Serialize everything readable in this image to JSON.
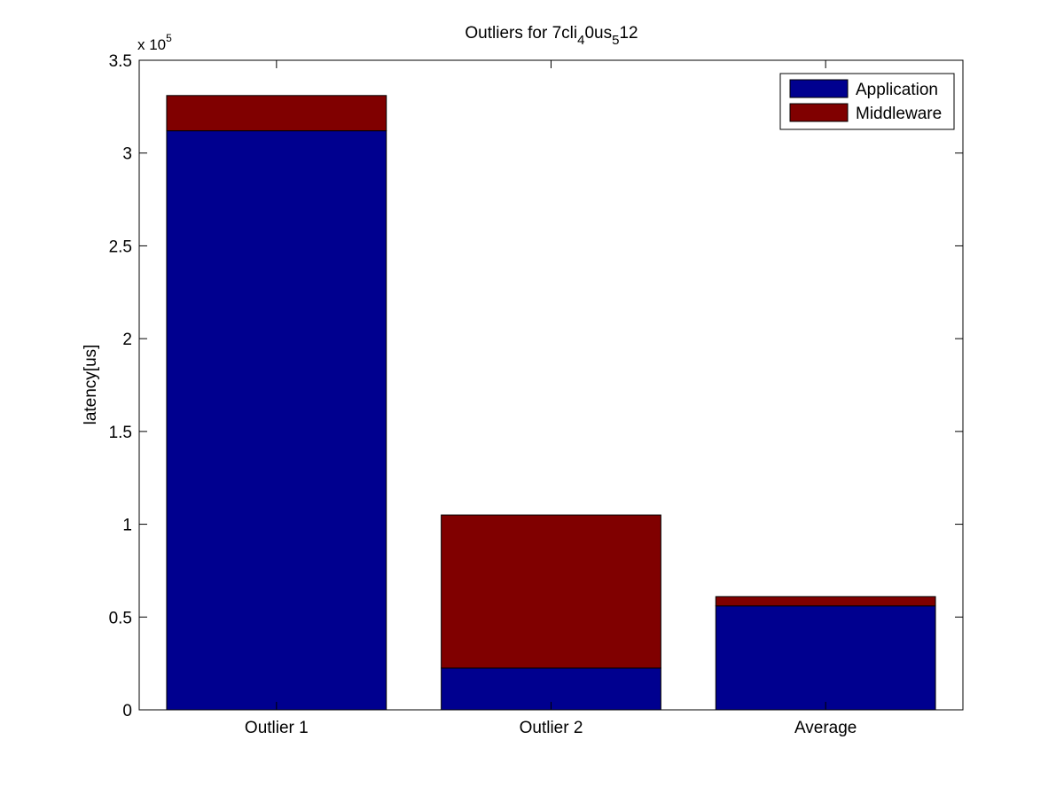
{
  "chart_data": {
    "type": "bar",
    "stacked": true,
    "title": {
      "prefix": "Outliers for 7cli",
      "sub1": "4",
      "mid": "0us",
      "sub2": "5",
      "suffix": "12"
    },
    "xlabel": "",
    "ylabel": "latency[us]",
    "y_exponent_label": {
      "base": "x 10",
      "power": "5"
    },
    "tick_scale": 100000,
    "ylim": [
      0,
      350000
    ],
    "yticks": [
      0,
      50000,
      100000,
      150000,
      200000,
      250000,
      300000,
      350000
    ],
    "ytick_labels": [
      "0",
      "0.5",
      "1",
      "1.5",
      "2",
      "2.5",
      "3",
      "3.5"
    ],
    "categories": [
      "Outlier 1",
      "Outlier 2",
      "Average"
    ],
    "series": [
      {
        "name": "Application",
        "color": "#00008f",
        "values": [
          312000,
          22500,
          56000
        ]
      },
      {
        "name": "Middleware",
        "color": "#800000",
        "values": [
          19000,
          82500,
          5000
        ]
      }
    ],
    "legend_position": "top-right",
    "grid": false
  }
}
